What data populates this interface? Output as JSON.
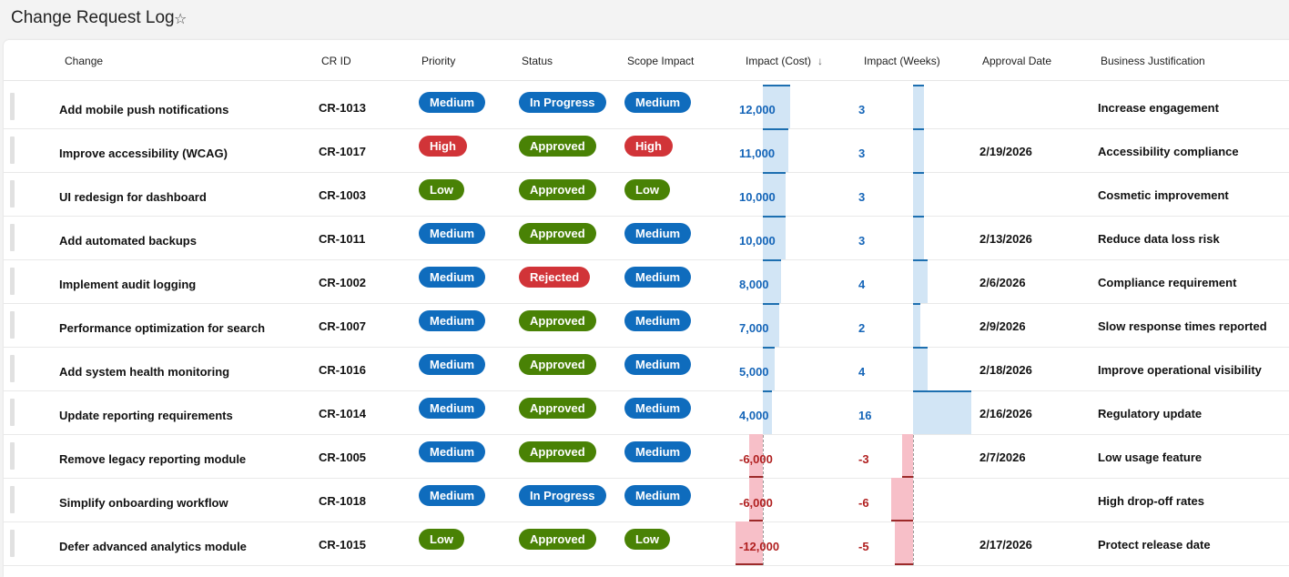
{
  "page": {
    "title": "Change Request Log",
    "favorite_icon": "star-icon"
  },
  "columns": {
    "change": "Change",
    "cr_id": "CR ID",
    "priority": "Priority",
    "status": "Status",
    "scope_impact": "Scope Impact",
    "impact_cost": "Impact (Cost)",
    "impact_cost_sort_icon": "arrow-down-icon",
    "impact_weeks": "Impact (Weeks)",
    "approval_date": "Approval Date",
    "business_justification": "Business Justification"
  },
  "colors": {
    "Medium": "#0f6cbd",
    "High": "#d13438",
    "Low": "#498205",
    "In Progress": "#0f6cbd",
    "Approved": "#498205",
    "Rejected": "#d13438"
  },
  "rows": [
    {
      "change": "Add mobile push notifications",
      "cr_id": "CR-1013",
      "priority": "Medium",
      "status": "In Progress",
      "scope": "Medium",
      "cost": "12,000",
      "cost_value": 12000,
      "weeks": "3",
      "weeks_value": 3,
      "approval_date": "",
      "justification": "Increase engagement"
    },
    {
      "change": "Improve accessibility (WCAG)",
      "cr_id": "CR-1017",
      "priority": "High",
      "status": "Approved",
      "scope": "High",
      "cost": "11,000",
      "cost_value": 11000,
      "weeks": "3",
      "weeks_value": 3,
      "approval_date": "2/19/2026",
      "justification": "Accessibility compliance"
    },
    {
      "change": "UI redesign for dashboard",
      "cr_id": "CR-1003",
      "priority": "Low",
      "status": "Approved",
      "scope": "Low",
      "cost": "10,000",
      "cost_value": 10000,
      "weeks": "3",
      "weeks_value": 3,
      "approval_date": "",
      "justification": "Cosmetic improvement"
    },
    {
      "change": "Add automated backups",
      "cr_id": "CR-1011",
      "priority": "Medium",
      "status": "Approved",
      "scope": "Medium",
      "cost": "10,000",
      "cost_value": 10000,
      "weeks": "3",
      "weeks_value": 3,
      "approval_date": "2/13/2026",
      "justification": "Reduce data loss risk"
    },
    {
      "change": "Implement audit logging",
      "cr_id": "CR-1002",
      "priority": "Medium",
      "status": "Rejected",
      "scope": "Medium",
      "cost": "8,000",
      "cost_value": 8000,
      "weeks": "4",
      "weeks_value": 4,
      "approval_date": "2/6/2026",
      "justification": "Compliance requirement"
    },
    {
      "change": "Performance optimization for search",
      "cr_id": "CR-1007",
      "priority": "Medium",
      "status": "Approved",
      "scope": "Medium",
      "cost": "7,000",
      "cost_value": 7000,
      "weeks": "2",
      "weeks_value": 2,
      "approval_date": "2/9/2026",
      "justification": "Slow response times reported"
    },
    {
      "change": "Add system health monitoring",
      "cr_id": "CR-1016",
      "priority": "Medium",
      "status": "Approved",
      "scope": "Medium",
      "cost": "5,000",
      "cost_value": 5000,
      "weeks": "4",
      "weeks_value": 4,
      "approval_date": "2/18/2026",
      "justification": "Improve operational visibility"
    },
    {
      "change": "Update reporting requirements",
      "cr_id": "CR-1014",
      "priority": "Medium",
      "status": "Approved",
      "scope": "Medium",
      "cost": "4,000",
      "cost_value": 4000,
      "weeks": "16",
      "weeks_value": 16,
      "approval_date": "2/16/2026",
      "justification": "Regulatory update"
    },
    {
      "change": "Remove legacy reporting module",
      "cr_id": "CR-1005",
      "priority": "Medium",
      "status": "Approved",
      "scope": "Medium",
      "cost": "-6,000",
      "cost_value": -6000,
      "weeks": "-3",
      "weeks_value": -3,
      "approval_date": "2/7/2026",
      "justification": "Low usage feature"
    },
    {
      "change": "Simplify onboarding workflow",
      "cr_id": "CR-1018",
      "priority": "Medium",
      "status": "In Progress",
      "scope": "Medium",
      "cost": "-6,000",
      "cost_value": -6000,
      "weeks": "-6",
      "weeks_value": -6,
      "approval_date": "",
      "justification": "High drop-off rates"
    },
    {
      "change": "Defer advanced analytics module",
      "cr_id": "CR-1015",
      "priority": "Low",
      "status": "Approved",
      "scope": "Low",
      "cost": "-12,000",
      "cost_value": -12000,
      "weeks": "-5",
      "weeks_value": -5,
      "approval_date": "2/17/2026",
      "justification": "Protect release date"
    }
  ]
}
